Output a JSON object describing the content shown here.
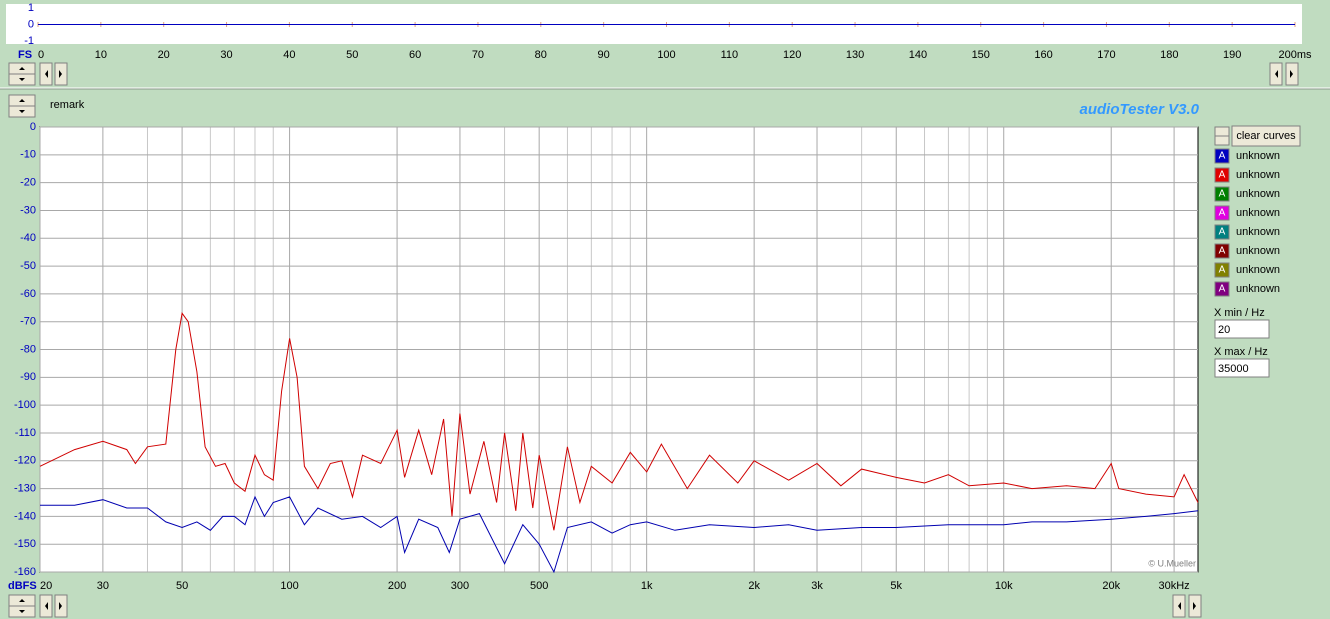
{
  "title": "audioTester  V3.0",
  "remark": "remark",
  "copyright": "© U.Mueller",
  "clear_button": "clear curves",
  "curves": [
    {
      "icon": "A",
      "label": "unknown",
      "color": "#0000c0"
    },
    {
      "icon": "A",
      "label": "unknown",
      "color": "#e00000"
    },
    {
      "icon": "A",
      "label": "unknown",
      "color": "#008000"
    },
    {
      "icon": "A",
      "label": "unknown",
      "color": "#e000e0"
    },
    {
      "icon": "A",
      "label": "unknown",
      "color": "#008080"
    },
    {
      "icon": "A",
      "label": "unknown",
      "color": "#800000"
    },
    {
      "icon": "A",
      "label": "unknown",
      "color": "#808000"
    },
    {
      "icon": "A",
      "label": "unknown",
      "color": "#800080"
    }
  ],
  "x_min_label": "X min / Hz",
  "x_max_label": "X max / Hz",
  "chart_data": [
    {
      "type": "line",
      "y_label": "FS",
      "xscale": "linear",
      "grid": false,
      "xlim": [
        0,
        200
      ],
      "ylim": [
        -1,
        1
      ],
      "xticks": [
        0,
        10,
        20,
        30,
        40,
        50,
        60,
        70,
        80,
        90,
        100,
        110,
        120,
        130,
        140,
        150,
        160,
        170,
        180,
        190,
        {
          "value": 200,
          "label": "200ms"
        }
      ],
      "yticks": [
        1,
        0,
        -1
      ],
      "series": [
        {
          "color": "#e00000",
          "x": [
            0,
            200
          ],
          "values": [
            0,
            0
          ]
        },
        {
          "color": "#0000c0",
          "x": [
            0,
            200
          ],
          "values": [
            0,
            0
          ]
        }
      ]
    },
    {
      "type": "line",
      "y_label": "dBFS",
      "xscale": "log",
      "grid": true,
      "xlim": [
        20,
        35000
      ],
      "ylim": [
        -160,
        0
      ],
      "xticks": [
        20,
        30,
        50,
        100,
        200,
        300,
        500,
        {
          "value": 1000,
          "label": "1k"
        },
        {
          "value": 2000,
          "label": "2k"
        },
        {
          "value": 3000,
          "label": "3k"
        },
        {
          "value": 5000,
          "label": "5k"
        },
        {
          "value": 10000,
          "label": "10k"
        },
        {
          "value": 20000,
          "label": "20k"
        },
        {
          "value": 30000,
          "label": "30kHz"
        }
      ],
      "minor_grid": [
        40,
        60,
        70,
        80,
        90,
        400,
        600,
        700,
        800,
        900,
        4000,
        6000,
        7000,
        8000,
        9000
      ],
      "yticks": [
        0,
        -10,
        -20,
        -30,
        -40,
        -50,
        -60,
        -70,
        -80,
        -90,
        -100,
        -110,
        -120,
        -130,
        -140,
        -150,
        -160
      ],
      "series": [
        {
          "color": "#d00000",
          "x": [
            20,
            25,
            30,
            35,
            37,
            40,
            45,
            48,
            50,
            52,
            55,
            58,
            62,
            66,
            70,
            75,
            80,
            85,
            90,
            95,
            100,
            105,
            110,
            120,
            130,
            140,
            150,
            160,
            180,
            200,
            210,
            230,
            250,
            270,
            285,
            300,
            320,
            350,
            380,
            400,
            430,
            450,
            480,
            500,
            550,
            600,
            650,
            700,
            800,
            900,
            1000,
            1100,
            1300,
            1500,
            1800,
            2000,
            2500,
            3000,
            3500,
            4000,
            5000,
            6000,
            7000,
            8000,
            10000,
            12000,
            15000,
            18000,
            20000,
            21000,
            25000,
            30000,
            32000,
            35000
          ],
          "values": [
            -122,
            -116,
            -113,
            -116,
            -121,
            -115,
            -114,
            -80,
            -67,
            -70,
            -88,
            -115,
            -122,
            -121,
            -128,
            -131,
            -118,
            -125,
            -127,
            -95,
            -76,
            -90,
            -122,
            -130,
            -121,
            -120,
            -133,
            -118,
            -121,
            -109,
            -126,
            -109,
            -125,
            -105,
            -140,
            -103,
            -132,
            -113,
            -135,
            -110,
            -138,
            -110,
            -137,
            -118,
            -145,
            -115,
            -135,
            -122,
            -128,
            -117,
            -124,
            -114,
            -130,
            -118,
            -128,
            -120,
            -127,
            -121,
            -129,
            -123,
            -126,
            -128,
            -125,
            -129,
            -128,
            -130,
            -129,
            -130,
            -121,
            -130,
            -132,
            -133,
            -125,
            -135
          ]
        },
        {
          "color": "#0000b0",
          "x": [
            20,
            25,
            30,
            35,
            40,
            45,
            50,
            55,
            60,
            65,
            70,
            75,
            80,
            85,
            90,
            100,
            110,
            120,
            140,
            160,
            180,
            200,
            210,
            230,
            260,
            280,
            300,
            340,
            400,
            450,
            500,
            550,
            600,
            700,
            800,
            900,
            1000,
            1200,
            1500,
            2000,
            2500,
            3000,
            4000,
            5000,
            7000,
            10000,
            12000,
            15000,
            20000,
            25000,
            30000,
            35000
          ],
          "values": [
            -136,
            -136,
            -134,
            -137,
            -137,
            -142,
            -144,
            -142,
            -145,
            -140,
            -140,
            -143,
            -133,
            -140,
            -135,
            -133,
            -143,
            -137,
            -141,
            -140,
            -144,
            -140,
            -153,
            -141,
            -144,
            -153,
            -141,
            -139,
            -157,
            -143,
            -150,
            -160,
            -144,
            -142,
            -146,
            -143,
            -142,
            -145,
            -143,
            -144,
            -143,
            -145,
            -144,
            -144,
            -143,
            -143,
            -142,
            -142,
            -141,
            -140,
            -139,
            -138
          ]
        }
      ]
    }
  ]
}
